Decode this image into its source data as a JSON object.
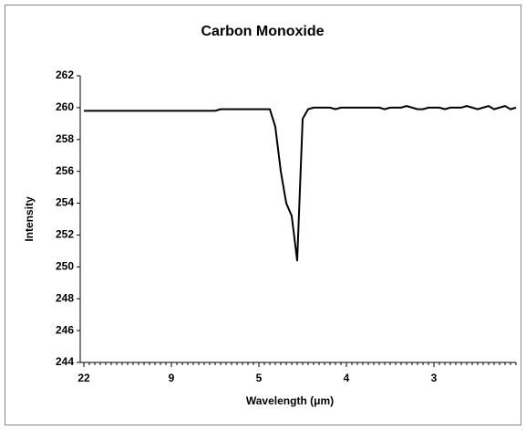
{
  "chart_data": {
    "type": "line",
    "title": "Carbon Monoxide",
    "x_label": "Wavelength (μm)",
    "y_label": "Intensity",
    "categories": [
      "22",
      null,
      null,
      null,
      null,
      null,
      null,
      null,
      null,
      null,
      null,
      null,
      null,
      null,
      null,
      null,
      "9",
      null,
      null,
      null,
      null,
      null,
      null,
      null,
      null,
      null,
      null,
      null,
      null,
      null,
      null,
      null,
      "5",
      null,
      null,
      null,
      null,
      null,
      null,
      null,
      null,
      null,
      null,
      null,
      null,
      null,
      null,
      null,
      "4",
      null,
      null,
      null,
      null,
      null,
      null,
      null,
      null,
      null,
      null,
      null,
      null,
      null,
      null,
      null,
      "3",
      null,
      null,
      null,
      null,
      null,
      null,
      null,
      null,
      null,
      null,
      null,
      null,
      null,
      null,
      null
    ],
    "values": [
      259.8,
      259.8,
      259.8,
      259.8,
      259.8,
      259.8,
      259.8,
      259.8,
      259.8,
      259.8,
      259.8,
      259.8,
      259.8,
      259.8,
      259.8,
      259.8,
      259.8,
      259.8,
      259.8,
      259.8,
      259.8,
      259.8,
      259.8,
      259.8,
      259.8,
      259.9,
      259.9,
      259.9,
      259.9,
      259.9,
      259.9,
      259.9,
      259.9,
      259.9,
      259.9,
      258.8,
      256.0,
      254.0,
      253.2,
      250.4,
      259.3,
      259.9,
      260.0,
      260.0,
      260.0,
      260.0,
      259.9,
      260.0,
      260.0,
      260.0,
      260.0,
      260.0,
      260.0,
      260.0,
      260.0,
      259.9,
      260.0,
      260.0,
      260.0,
      260.1,
      260.0,
      259.9,
      259.9,
      260.0,
      260.0,
      260.0,
      259.9,
      260.0,
      260.0,
      260.0,
      260.1,
      260.0,
      259.9,
      260.0,
      260.1,
      259.9,
      260.0,
      260.1,
      259.9,
      260.0
    ],
    "color": "#000000",
    "ylim": [
      244,
      262
    ],
    "yticks": [
      244,
      246,
      248,
      250,
      252,
      254,
      256,
      258,
      260,
      262
    ]
  }
}
